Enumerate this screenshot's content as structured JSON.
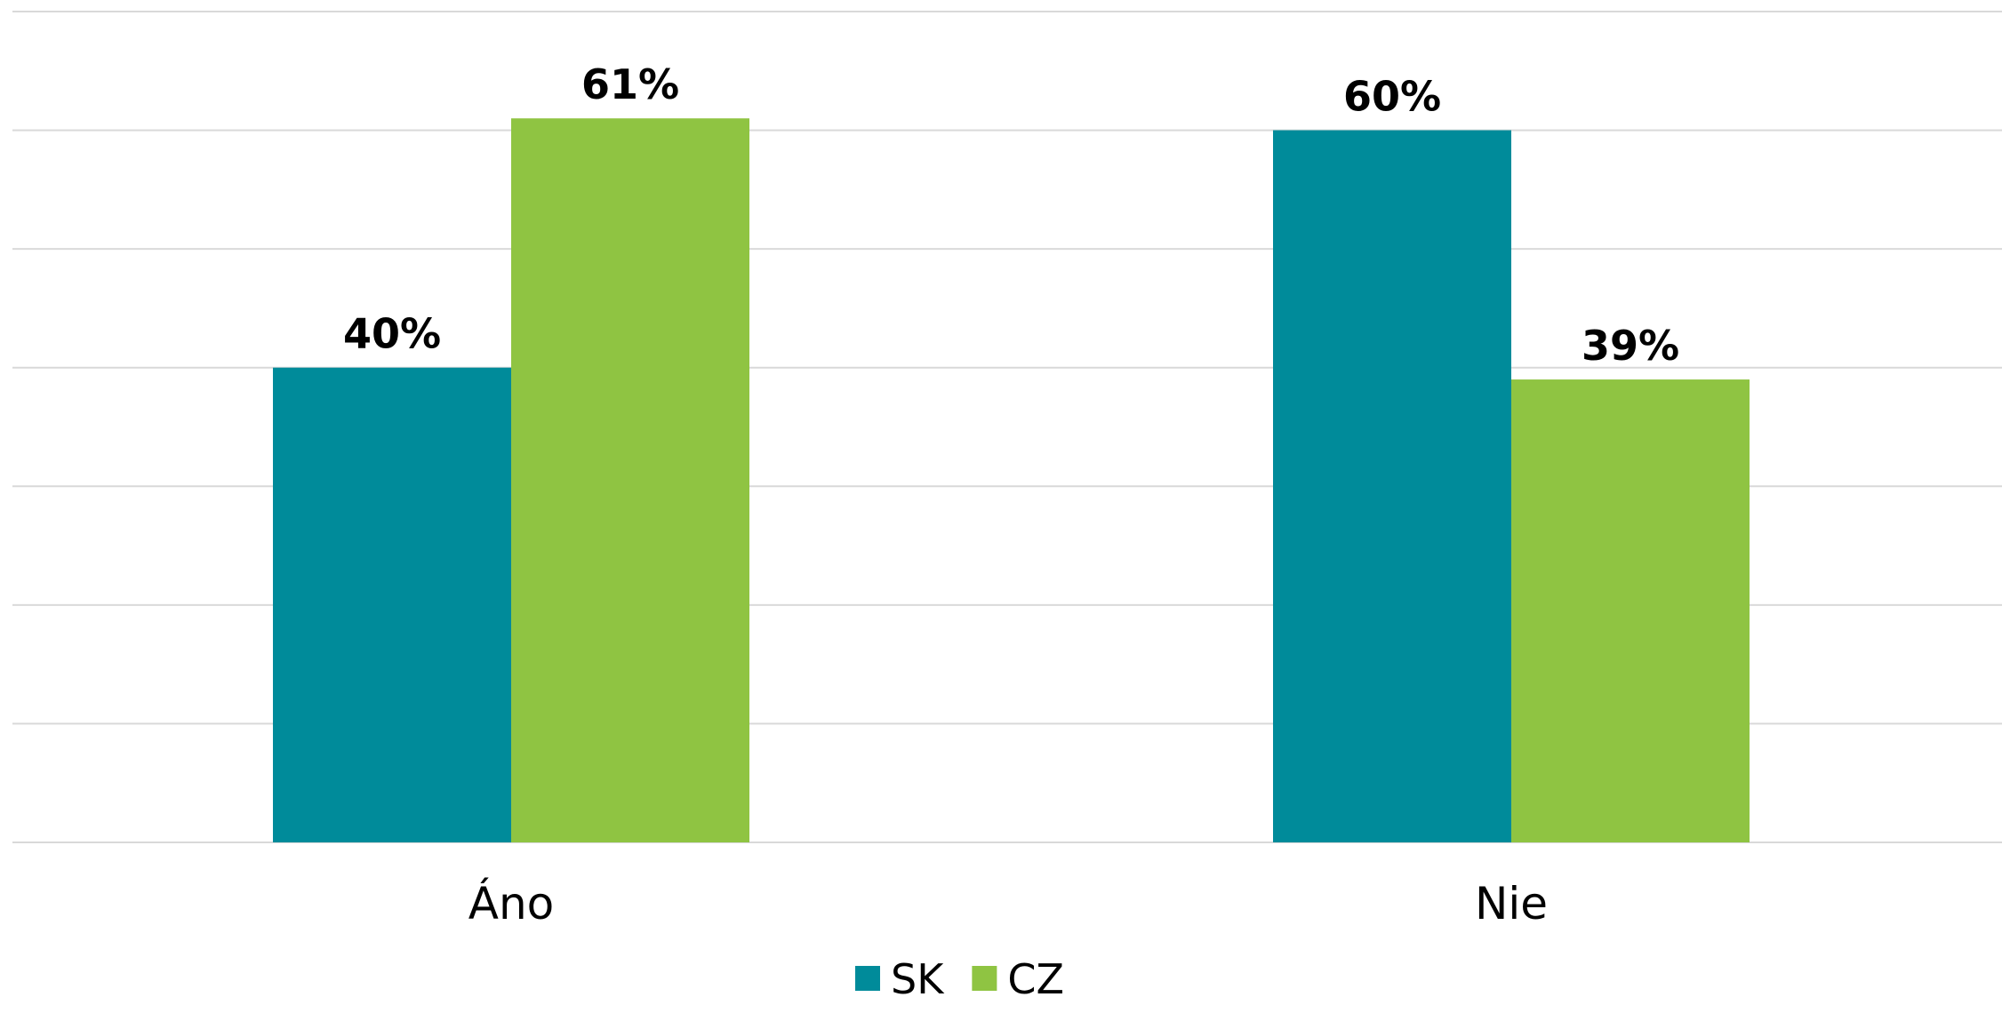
{
  "chart_data": {
    "type": "bar",
    "categories": [
      "Áno",
      "Nie"
    ],
    "series": [
      {
        "name": "SK",
        "values": [
          40,
          60
        ],
        "labels": [
          "40%",
          "60%"
        ],
        "color": "#008b9a"
      },
      {
        "name": "CZ",
        "values": [
          61,
          39
        ],
        "labels": [
          "61%",
          "39%"
        ],
        "color": "#8fc442"
      }
    ],
    "ylim": [
      0,
      70
    ],
    "grid": true,
    "legend_placement": "bottom-center",
    "title": "",
    "xlabel": "",
    "ylabel": ""
  }
}
